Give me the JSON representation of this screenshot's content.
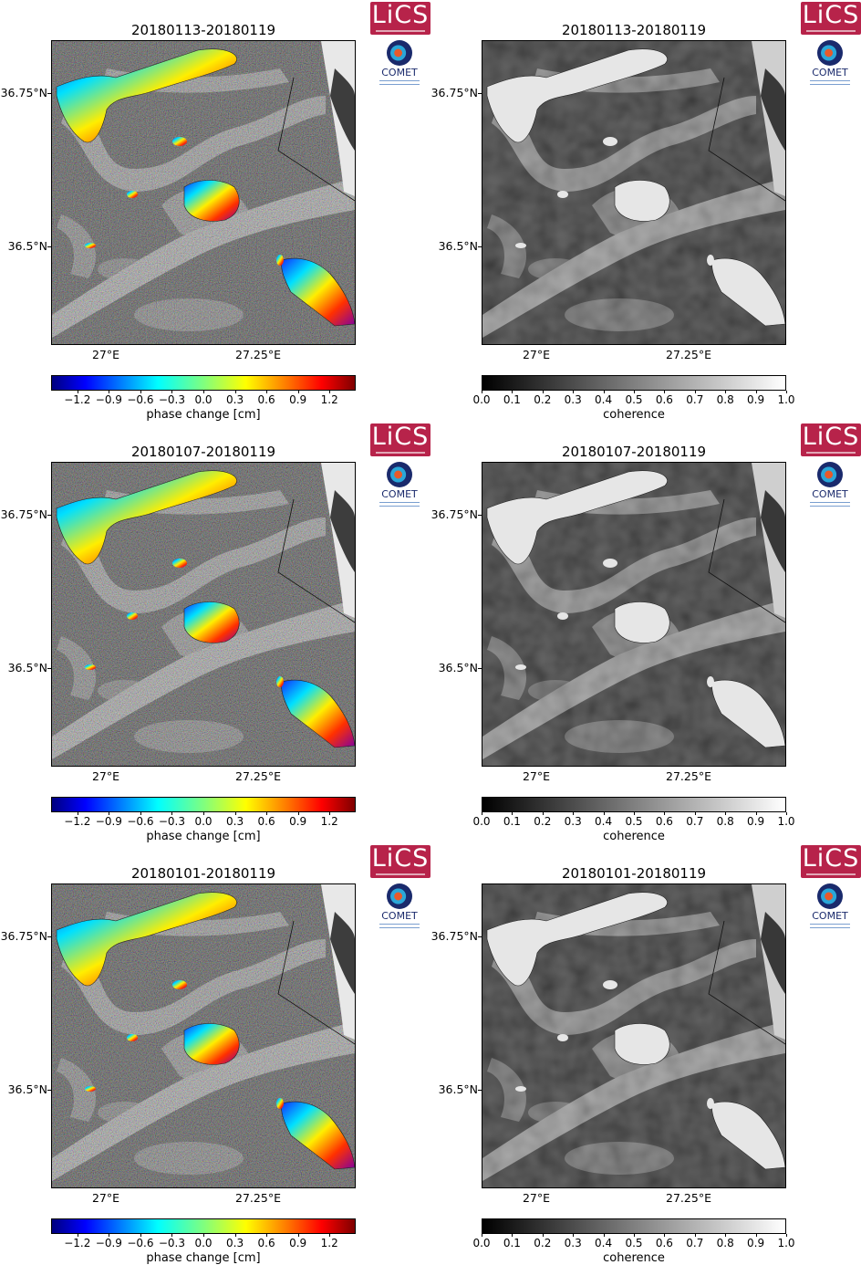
{
  "logos": {
    "lics": "LiCS",
    "comet": "COMET"
  },
  "map_labels": {
    "lat_top": "36.75°N",
    "lat_bottom": "36.5°N",
    "lon_left": "27°E",
    "lon_right": "27.25°E"
  },
  "colorbars": {
    "phase": {
      "label": "phase change [cm]",
      "ticks": [
        "−1.2",
        "−0.9",
        "−0.6",
        "−0.3",
        "0.0",
        "0.3",
        "0.6",
        "0.9",
        "1.2"
      ]
    },
    "coherence": {
      "label": "coherence",
      "ticks": [
        "0.0",
        "0.1",
        "0.2",
        "0.3",
        "0.4",
        "0.5",
        "0.6",
        "0.7",
        "0.8",
        "0.9",
        "1.0"
      ]
    }
  },
  "rows": [
    {
      "title_left": "20180113-20180119",
      "title_right": "20180113-20180119"
    },
    {
      "title_left": "20180107-20180119",
      "title_right": "20180107-20180119"
    },
    {
      "title_left": "20180101-20180119",
      "title_right": "20180101-20180119"
    }
  ]
}
